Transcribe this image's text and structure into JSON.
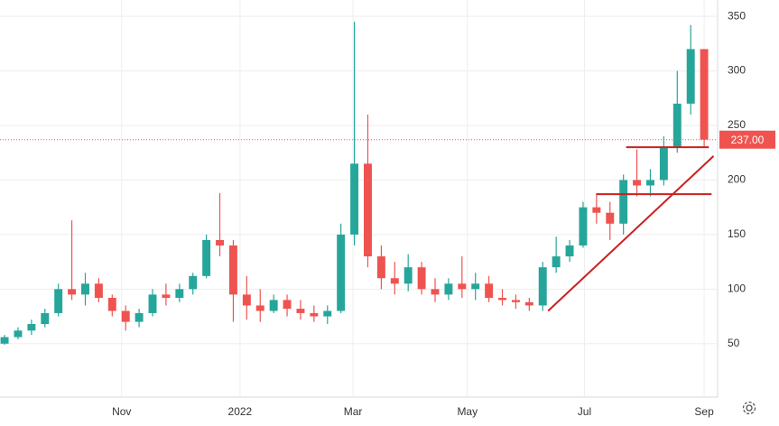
{
  "chart_data": {
    "type": "candlestick",
    "x": [
      0,
      1,
      2,
      3,
      4,
      5,
      6,
      7,
      8,
      9,
      10,
      11,
      12,
      13,
      14,
      15,
      16,
      17,
      18,
      19,
      20,
      21,
      22,
      23,
      24,
      25,
      26,
      27,
      28,
      29,
      30,
      31,
      32,
      33,
      34,
      35,
      36,
      37,
      38,
      39,
      40,
      41,
      42,
      43,
      44,
      45,
      46,
      47,
      48,
      49,
      50,
      51,
      52
    ],
    "open": [
      50,
      56,
      62,
      68,
      78,
      100,
      95,
      105,
      92,
      80,
      70,
      78,
      95,
      92,
      100,
      112,
      145,
      140,
      95,
      85,
      80,
      90,
      82,
      78,
      75,
      80,
      150,
      215,
      130,
      110,
      105,
      120,
      100,
      95,
      105,
      100,
      105,
      92,
      90,
      88,
      85,
      120,
      130,
      140,
      175,
      170,
      160,
      200,
      195,
      200,
      230,
      270,
      320
    ],
    "high": [
      58,
      65,
      72,
      82,
      105,
      163,
      115,
      110,
      95,
      85,
      82,
      100,
      105,
      105,
      115,
      150,
      188,
      145,
      112,
      100,
      95,
      95,
      90,
      85,
      85,
      160,
      345,
      260,
      140,
      125,
      132,
      125,
      110,
      110,
      130,
      115,
      112,
      100,
      95,
      92,
      125,
      148,
      145,
      180,
      188,
      180,
      205,
      228,
      210,
      240,
      300,
      342,
      320
    ],
    "low": [
      49,
      54,
      58,
      65,
      75,
      90,
      85,
      88,
      75,
      62,
      65,
      75,
      85,
      88,
      95,
      110,
      130,
      70,
      72,
      70,
      78,
      75,
      72,
      70,
      68,
      78,
      140,
      120,
      100,
      95,
      98,
      95,
      88,
      90,
      92,
      90,
      88,
      85,
      82,
      80,
      80,
      115,
      125,
      138,
      160,
      145,
      150,
      185,
      185,
      195,
      225,
      260,
      230
    ],
    "close": [
      56,
      62,
      68,
      78,
      100,
      95,
      105,
      92,
      80,
      70,
      78,
      95,
      92,
      100,
      112,
      145,
      140,
      95,
      85,
      80,
      90,
      82,
      78,
      75,
      80,
      150,
      215,
      130,
      110,
      105,
      120,
      100,
      95,
      105,
      100,
      105,
      92,
      90,
      88,
      85,
      120,
      130,
      140,
      175,
      170,
      160,
      200,
      195,
      200,
      230,
      270,
      320,
      237
    ],
    "up_color": "#26a69a",
    "down_color": "#ef5350",
    "xlim": [
      -0.34,
      53.0
    ],
    "ylim": [
      1,
      365
    ],
    "xticks": [
      {
        "value": 8.7,
        "label": "Nov"
      },
      {
        "value": 17.5,
        "label": "2022"
      },
      {
        "value": 25.9,
        "label": "Mar"
      },
      {
        "value": 34.4,
        "label": "May"
      },
      {
        "value": 43.1,
        "label": "Jul"
      },
      {
        "value": 52.0,
        "label": "Sep"
      }
    ],
    "yticks": [
      50,
      100,
      150,
      200,
      250,
      300,
      350
    ],
    "grid": true,
    "last_price": {
      "value": 237,
      "label": "237.00"
    },
    "lines": [
      {
        "x": [
          40.4,
          52.7
        ],
        "y": [
          80,
          222
        ],
        "color": "#cc1f1f"
      },
      {
        "x": [
          46.2,
          52.35
        ],
        "y": [
          230,
          230
        ],
        "color": "#cc1f1f"
      },
      {
        "x": [
          44.0,
          52.55
        ],
        "y": [
          187,
          187
        ],
        "color": "#cc1f1f"
      }
    ]
  }
}
